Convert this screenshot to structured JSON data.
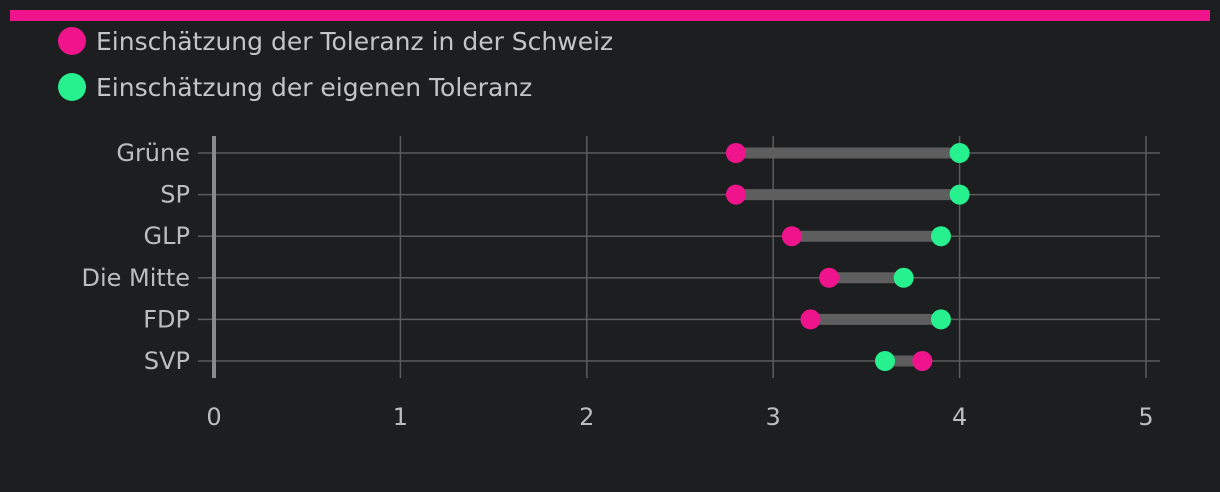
{
  "colors": {
    "background": "#1d1e20",
    "accent_bar": "#f0148c",
    "series_switzerland": "#f0148c",
    "series_own": "#27f08f",
    "grid": "#5c5c5c",
    "connector": "#5e5e5e",
    "text": "#bdbdbd"
  },
  "chart_data": {
    "type": "dumbbell",
    "title": "",
    "xlabel": "",
    "ylabel": "",
    "xlim": [
      0,
      5
    ],
    "x_ticks": [
      "0",
      "1",
      "2",
      "3",
      "4",
      "5"
    ],
    "grid": true,
    "legend_position": "top-left",
    "categories": [
      "Grüne",
      "SP",
      "GLP",
      "Die Mitte",
      "FDP",
      "SVP"
    ],
    "series": [
      {
        "name": "Einschätzung der Toleranz in der Schweiz",
        "color": "#f0148c",
        "values": [
          2.8,
          2.8,
          3.1,
          3.3,
          3.2,
          3.8
        ]
      },
      {
        "name": "Einschätzung der eigenen Toleranz",
        "color": "#27f08f",
        "values": [
          4.0,
          4.0,
          3.9,
          3.7,
          3.9,
          3.6
        ]
      }
    ]
  }
}
